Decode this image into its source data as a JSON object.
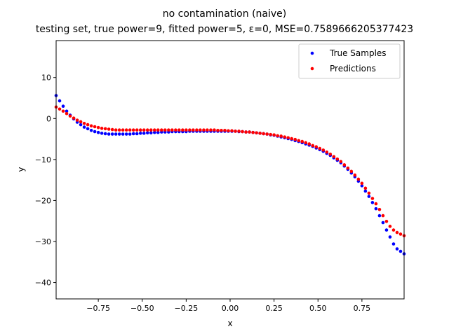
{
  "chart_data": {
    "type": "scatter",
    "title": "no contamination (naive)",
    "subtitle": "testing set, true power=9, fitted power=5, ε=0, MSE=0.7589666205377423",
    "xlabel": "x",
    "ylabel": "y",
    "xlim": [
      -0.99,
      0.99
    ],
    "ylim": [
      -44,
      19
    ],
    "xticks": [
      -0.75,
      -0.5,
      -0.25,
      0.0,
      0.25,
      0.5,
      0.75
    ],
    "xtick_labels": [
      "−0.75",
      "−0.50",
      "−0.25",
      "0.00",
      "0.25",
      "0.50",
      "0.75"
    ],
    "yticks": [
      -40,
      -30,
      -20,
      -10,
      0,
      10
    ],
    "ytick_labels": [
      "−40",
      "−30",
      "−20",
      "−10",
      "0",
      "10"
    ],
    "grid": false,
    "legend_position": "top-right",
    "series": [
      {
        "name": "True Samples",
        "color": "#0000ff",
        "x": [
          -0.99,
          -0.97,
          -0.95,
          -0.93,
          -0.91,
          -0.89,
          -0.87,
          -0.85,
          -0.83,
          -0.81,
          -0.79,
          -0.77,
          -0.75,
          -0.73,
          -0.71,
          -0.69,
          -0.67,
          -0.65,
          -0.63,
          -0.61,
          -0.59,
          -0.57,
          -0.55,
          -0.53,
          -0.51,
          -0.49,
          -0.47,
          -0.45,
          -0.43,
          -0.41,
          -0.39,
          -0.37,
          -0.35,
          -0.33,
          -0.31,
          -0.29,
          -0.27,
          -0.25,
          -0.23,
          -0.21,
          -0.19,
          -0.17,
          -0.15,
          -0.13,
          -0.11,
          -0.09,
          -0.07,
          -0.05,
          -0.03,
          -0.01,
          0.01,
          0.03,
          0.05,
          0.07,
          0.09,
          0.11,
          0.13,
          0.15,
          0.17,
          0.19,
          0.21,
          0.23,
          0.25,
          0.27,
          0.29,
          0.31,
          0.33,
          0.35,
          0.37,
          0.39,
          0.41,
          0.43,
          0.45,
          0.47,
          0.49,
          0.51,
          0.53,
          0.55,
          0.57,
          0.59,
          0.61,
          0.63,
          0.65,
          0.67,
          0.69,
          0.71,
          0.73,
          0.75,
          0.77,
          0.79,
          0.81,
          0.83,
          0.85,
          0.87,
          0.89,
          0.91,
          0.93,
          0.95,
          0.97,
          0.99
        ],
        "y": [
          5.6,
          4.3,
          3.0,
          1.8,
          0.8,
          -0.1,
          -0.9,
          -1.5,
          -2.1,
          -2.5,
          -2.9,
          -3.2,
          -3.4,
          -3.6,
          -3.7,
          -3.8,
          -3.8,
          -3.8,
          -3.8,
          -3.8,
          -3.8,
          -3.8,
          -3.7,
          -3.7,
          -3.6,
          -3.6,
          -3.5,
          -3.5,
          -3.4,
          -3.4,
          -3.3,
          -3.3,
          -3.3,
          -3.2,
          -3.2,
          -3.2,
          -3.2,
          -3.2,
          -3.1,
          -3.1,
          -3.1,
          -3.1,
          -3.1,
          -3.1,
          -3.1,
          -3.1,
          -3.1,
          -3.1,
          -3.1,
          -3.1,
          -3.1,
          -3.1,
          -3.2,
          -3.2,
          -3.3,
          -3.3,
          -3.4,
          -3.5,
          -3.6,
          -3.7,
          -3.8,
          -4.0,
          -4.1,
          -4.3,
          -4.5,
          -4.7,
          -4.9,
          -5.1,
          -5.4,
          -5.6,
          -5.9,
          -6.2,
          -6.5,
          -6.8,
          -7.2,
          -7.6,
          -8.0,
          -8.5,
          -9.0,
          -9.6,
          -10.2,
          -10.8,
          -11.6,
          -12.4,
          -13.3,
          -14.2,
          -15.3,
          -16.4,
          -17.7,
          -19.0,
          -20.5,
          -22.0,
          -23.7,
          -25.4,
          -27.2,
          -28.9,
          -30.6,
          -31.8,
          -32.4,
          -33.0
        ]
      },
      {
        "name": "Predictions",
        "color": "#ff0000",
        "x": [
          -0.99,
          -0.97,
          -0.95,
          -0.93,
          -0.91,
          -0.89,
          -0.87,
          -0.85,
          -0.83,
          -0.81,
          -0.79,
          -0.77,
          -0.75,
          -0.73,
          -0.71,
          -0.69,
          -0.67,
          -0.65,
          -0.63,
          -0.61,
          -0.59,
          -0.57,
          -0.55,
          -0.53,
          -0.51,
          -0.49,
          -0.47,
          -0.45,
          -0.43,
          -0.41,
          -0.39,
          -0.37,
          -0.35,
          -0.33,
          -0.31,
          -0.29,
          -0.27,
          -0.25,
          -0.23,
          -0.21,
          -0.19,
          -0.17,
          -0.15,
          -0.13,
          -0.11,
          -0.09,
          -0.07,
          -0.05,
          -0.03,
          -0.01,
          0.01,
          0.03,
          0.05,
          0.07,
          0.09,
          0.11,
          0.13,
          0.15,
          0.17,
          0.19,
          0.21,
          0.23,
          0.25,
          0.27,
          0.29,
          0.31,
          0.33,
          0.35,
          0.37,
          0.39,
          0.41,
          0.43,
          0.45,
          0.47,
          0.49,
          0.51,
          0.53,
          0.55,
          0.57,
          0.59,
          0.61,
          0.63,
          0.65,
          0.67,
          0.69,
          0.71,
          0.73,
          0.75,
          0.77,
          0.79,
          0.81,
          0.83,
          0.85,
          0.87,
          0.89,
          0.91,
          0.93,
          0.95,
          0.97,
          0.99
        ],
        "y": [
          2.8,
          2.3,
          1.8,
          1.2,
          0.6,
          0.1,
          -0.4,
          -0.8,
          -1.2,
          -1.5,
          -1.8,
          -2.0,
          -2.2,
          -2.4,
          -2.5,
          -2.6,
          -2.7,
          -2.8,
          -2.8,
          -2.8,
          -2.8,
          -2.8,
          -2.8,
          -2.8,
          -2.8,
          -2.8,
          -2.8,
          -2.8,
          -2.8,
          -2.8,
          -2.8,
          -2.8,
          -2.8,
          -2.8,
          -2.8,
          -2.8,
          -2.8,
          -2.8,
          -2.8,
          -2.8,
          -2.8,
          -2.8,
          -2.8,
          -2.8,
          -2.8,
          -2.8,
          -2.9,
          -2.9,
          -2.9,
          -3.0,
          -3.0,
          -3.1,
          -3.1,
          -3.2,
          -3.3,
          -3.3,
          -3.4,
          -3.5,
          -3.6,
          -3.7,
          -3.8,
          -3.9,
          -4.0,
          -4.2,
          -4.3,
          -4.5,
          -4.7,
          -4.9,
          -5.1,
          -5.4,
          -5.6,
          -5.9,
          -6.2,
          -6.6,
          -6.9,
          -7.3,
          -7.7,
          -8.2,
          -8.7,
          -9.3,
          -9.9,
          -10.5,
          -11.3,
          -12.1,
          -12.9,
          -13.8,
          -14.8,
          -15.8,
          -17.0,
          -18.2,
          -19.5,
          -20.8,
          -22.2,
          -23.7,
          -25.1,
          -26.3,
          -27.2,
          -27.8,
          -28.2,
          -28.6
        ]
      }
    ]
  }
}
